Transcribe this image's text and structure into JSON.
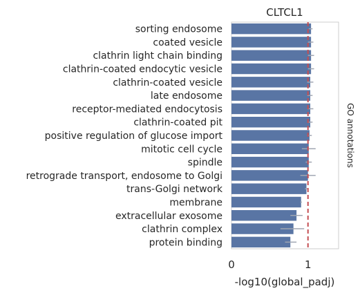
{
  "chart_data": {
    "type": "bar",
    "orientation": "horizontal",
    "title": "CLTCL1",
    "xlabel": "-log10(global_padj)",
    "ylabel": "GO annotations",
    "xlim": [
      0,
      1.4
    ],
    "xticks": [
      0,
      1
    ],
    "reference_line": 1,
    "grid": false,
    "categories": [
      "sorting endosome",
      "coated vesicle",
      "clathrin light chain binding",
      "clathrin-coated endocytic vesicle",
      "clathrin-coated vesicle",
      "late endosome",
      "receptor-mediated endocytosis",
      "clathrin-coated pit",
      "positive regulation of glucose import",
      "mitotic cell cycle",
      "spindle",
      "retrograde transport, endosome to Golgi",
      "trans-Golgi network",
      "membrane",
      "extracellular exosome",
      "clathrin complex",
      "protein binding"
    ],
    "values": [
      1.04,
      1.04,
      1.04,
      1.04,
      1.03,
      1.03,
      1.03,
      1.03,
      1.02,
      1.01,
      1.01,
      1.0,
      0.98,
      0.91,
      0.85,
      0.81,
      0.77
    ],
    "error_low": [
      1.01,
      1.0,
      1.0,
      1.0,
      0.99,
      0.99,
      0.99,
      0.99,
      0.99,
      0.92,
      0.97,
      0.9,
      0.96,
      0.9,
      0.77,
      0.64,
      0.7
    ],
    "error_high": [
      1.06,
      1.07,
      1.08,
      1.08,
      1.07,
      1.06,
      1.07,
      1.06,
      1.05,
      1.1,
      1.05,
      1.1,
      1.0,
      0.92,
      0.93,
      0.95,
      0.85
    ],
    "colors": {
      "bar": "#5975a4",
      "error": "#a0a6b2",
      "reference": "#c44e52",
      "frame": "#cccccc",
      "text": "#262626"
    }
  }
}
